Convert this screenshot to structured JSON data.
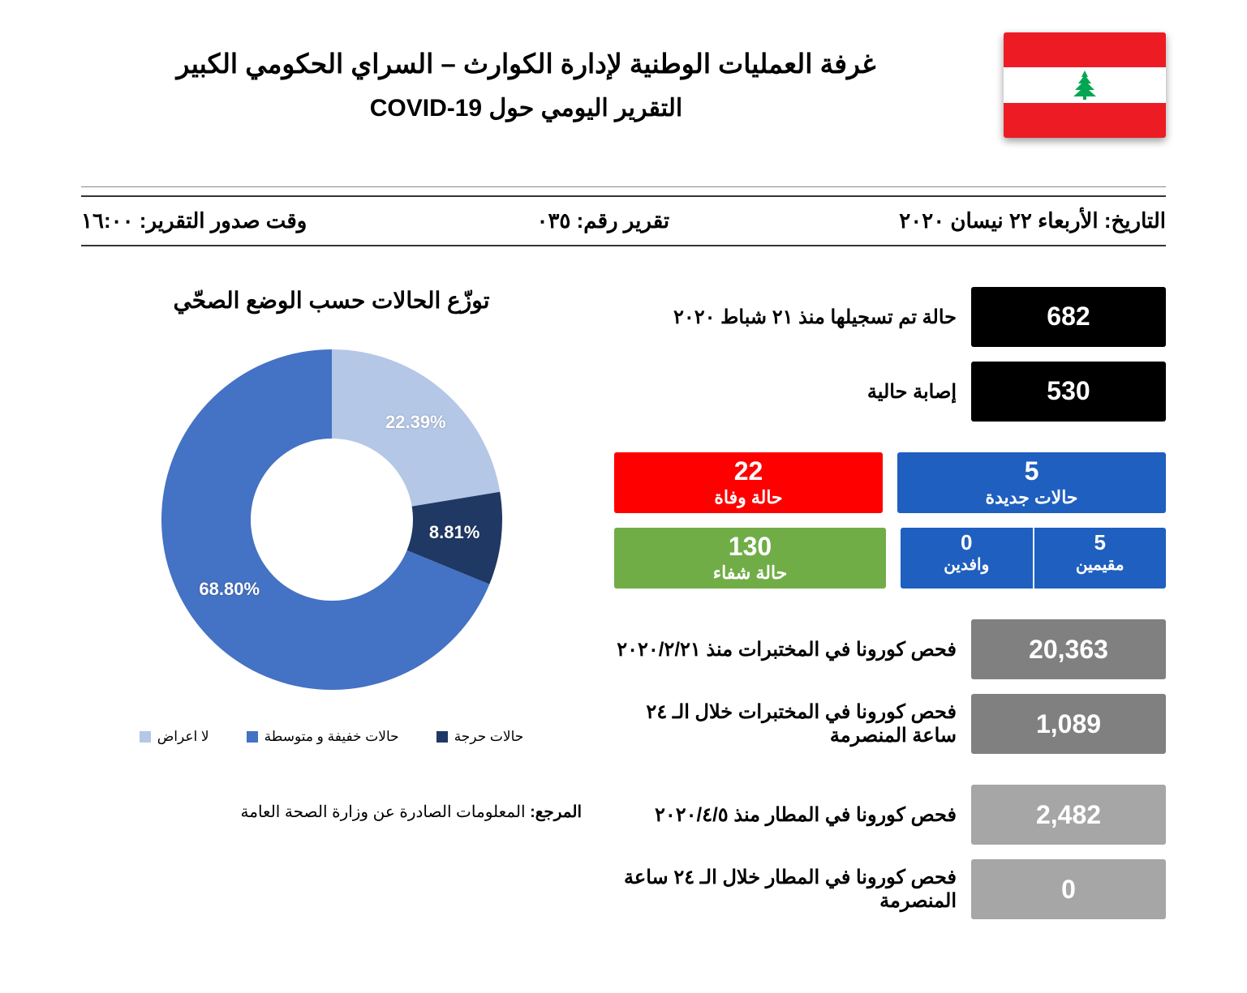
{
  "header": {
    "title_line1": "غرفة العمليات الوطنية لإدارة الكوارث – السراي الحكومي الكبير",
    "title_line2": "التقرير اليومي حول COVID-19",
    "flag": {
      "red": "#ed1c24",
      "white": "#ffffff",
      "cedar": "#00a651"
    }
  },
  "meta": {
    "date_label": "التاريخ:",
    "date_value": "الأربعاء ٢٢ نيسان ٢٠٢٠",
    "report_label": "تقرير رقم:",
    "report_value": "٠٣٥",
    "time_label": "وقت صدور التقرير:",
    "time_value": "١٦:٠٠"
  },
  "stats": {
    "colors": {
      "black": "#000000",
      "blue": "#1f5fbf",
      "red": "#ff0000",
      "green": "#70ad47",
      "gray": "#808080",
      "blue_split": "#1f5fbf"
    },
    "registered": {
      "value": "682",
      "label": "حالة تم تسجيلها منذ ٢١ شباط ٢٠٢٠"
    },
    "active": {
      "value": "530",
      "label": "إصابة حالية"
    },
    "new_cases": {
      "value": "5",
      "label": "حالات جديدة"
    },
    "deaths": {
      "value": "22",
      "label": "حالة وفاة"
    },
    "residents": {
      "value": "5",
      "label": "مقيمين"
    },
    "arrivals": {
      "value": "0",
      "label": "وافدين"
    },
    "recovered": {
      "value": "130",
      "label": "حالة شفاء"
    },
    "tests_total": {
      "value": "20,363",
      "label": "فحص كورونا في المختبرات منذ ٢٠٢٠/٢/٢١"
    },
    "tests_24h": {
      "value": "1,089",
      "label": "فحص كورونا في المختبرات خلال الـ ٢٤ ساعة المنصرمة"
    },
    "airport_total": {
      "value": "2,482",
      "label": "فحص كورونا في المطار منذ ٢٠٢٠/٤/٥"
    },
    "airport_24h": {
      "value": "0",
      "label": "فحص كورونا في المطار خلال الـ ٢٤ ساعة المنصرمة"
    }
  },
  "chart": {
    "title": "توزّع الحالات حسب الوضع الصحّي",
    "type": "donut",
    "slices": [
      {
        "name": "حالات حرجة",
        "pct": 8.81,
        "color": "#203864",
        "label": "8.81%"
      },
      {
        "name": "حالات خفيفة و متوسطة",
        "pct": 68.8,
        "color": "#4472c4",
        "label": "68.80%"
      },
      {
        "name": "لا اعراض",
        "pct": 22.39,
        "color": "#b4c7e7",
        "label": "22.39%"
      }
    ],
    "legend": [
      {
        "text": "حالات حرجة",
        "color": "#203864"
      },
      {
        "text": "حالات خفيفة و متوسطة",
        "color": "#4472c4"
      },
      {
        "text": "لا اعراض",
        "color": "#b4c7e7"
      }
    ],
    "background": "#ffffff",
    "label_color": "#ffffff",
    "label_fontsize": 22,
    "hole_ratio": 0.43
  },
  "source": {
    "prefix": "المرجع:",
    "text": "المعلومات الصادرة عن وزارة الصحة العامة"
  }
}
